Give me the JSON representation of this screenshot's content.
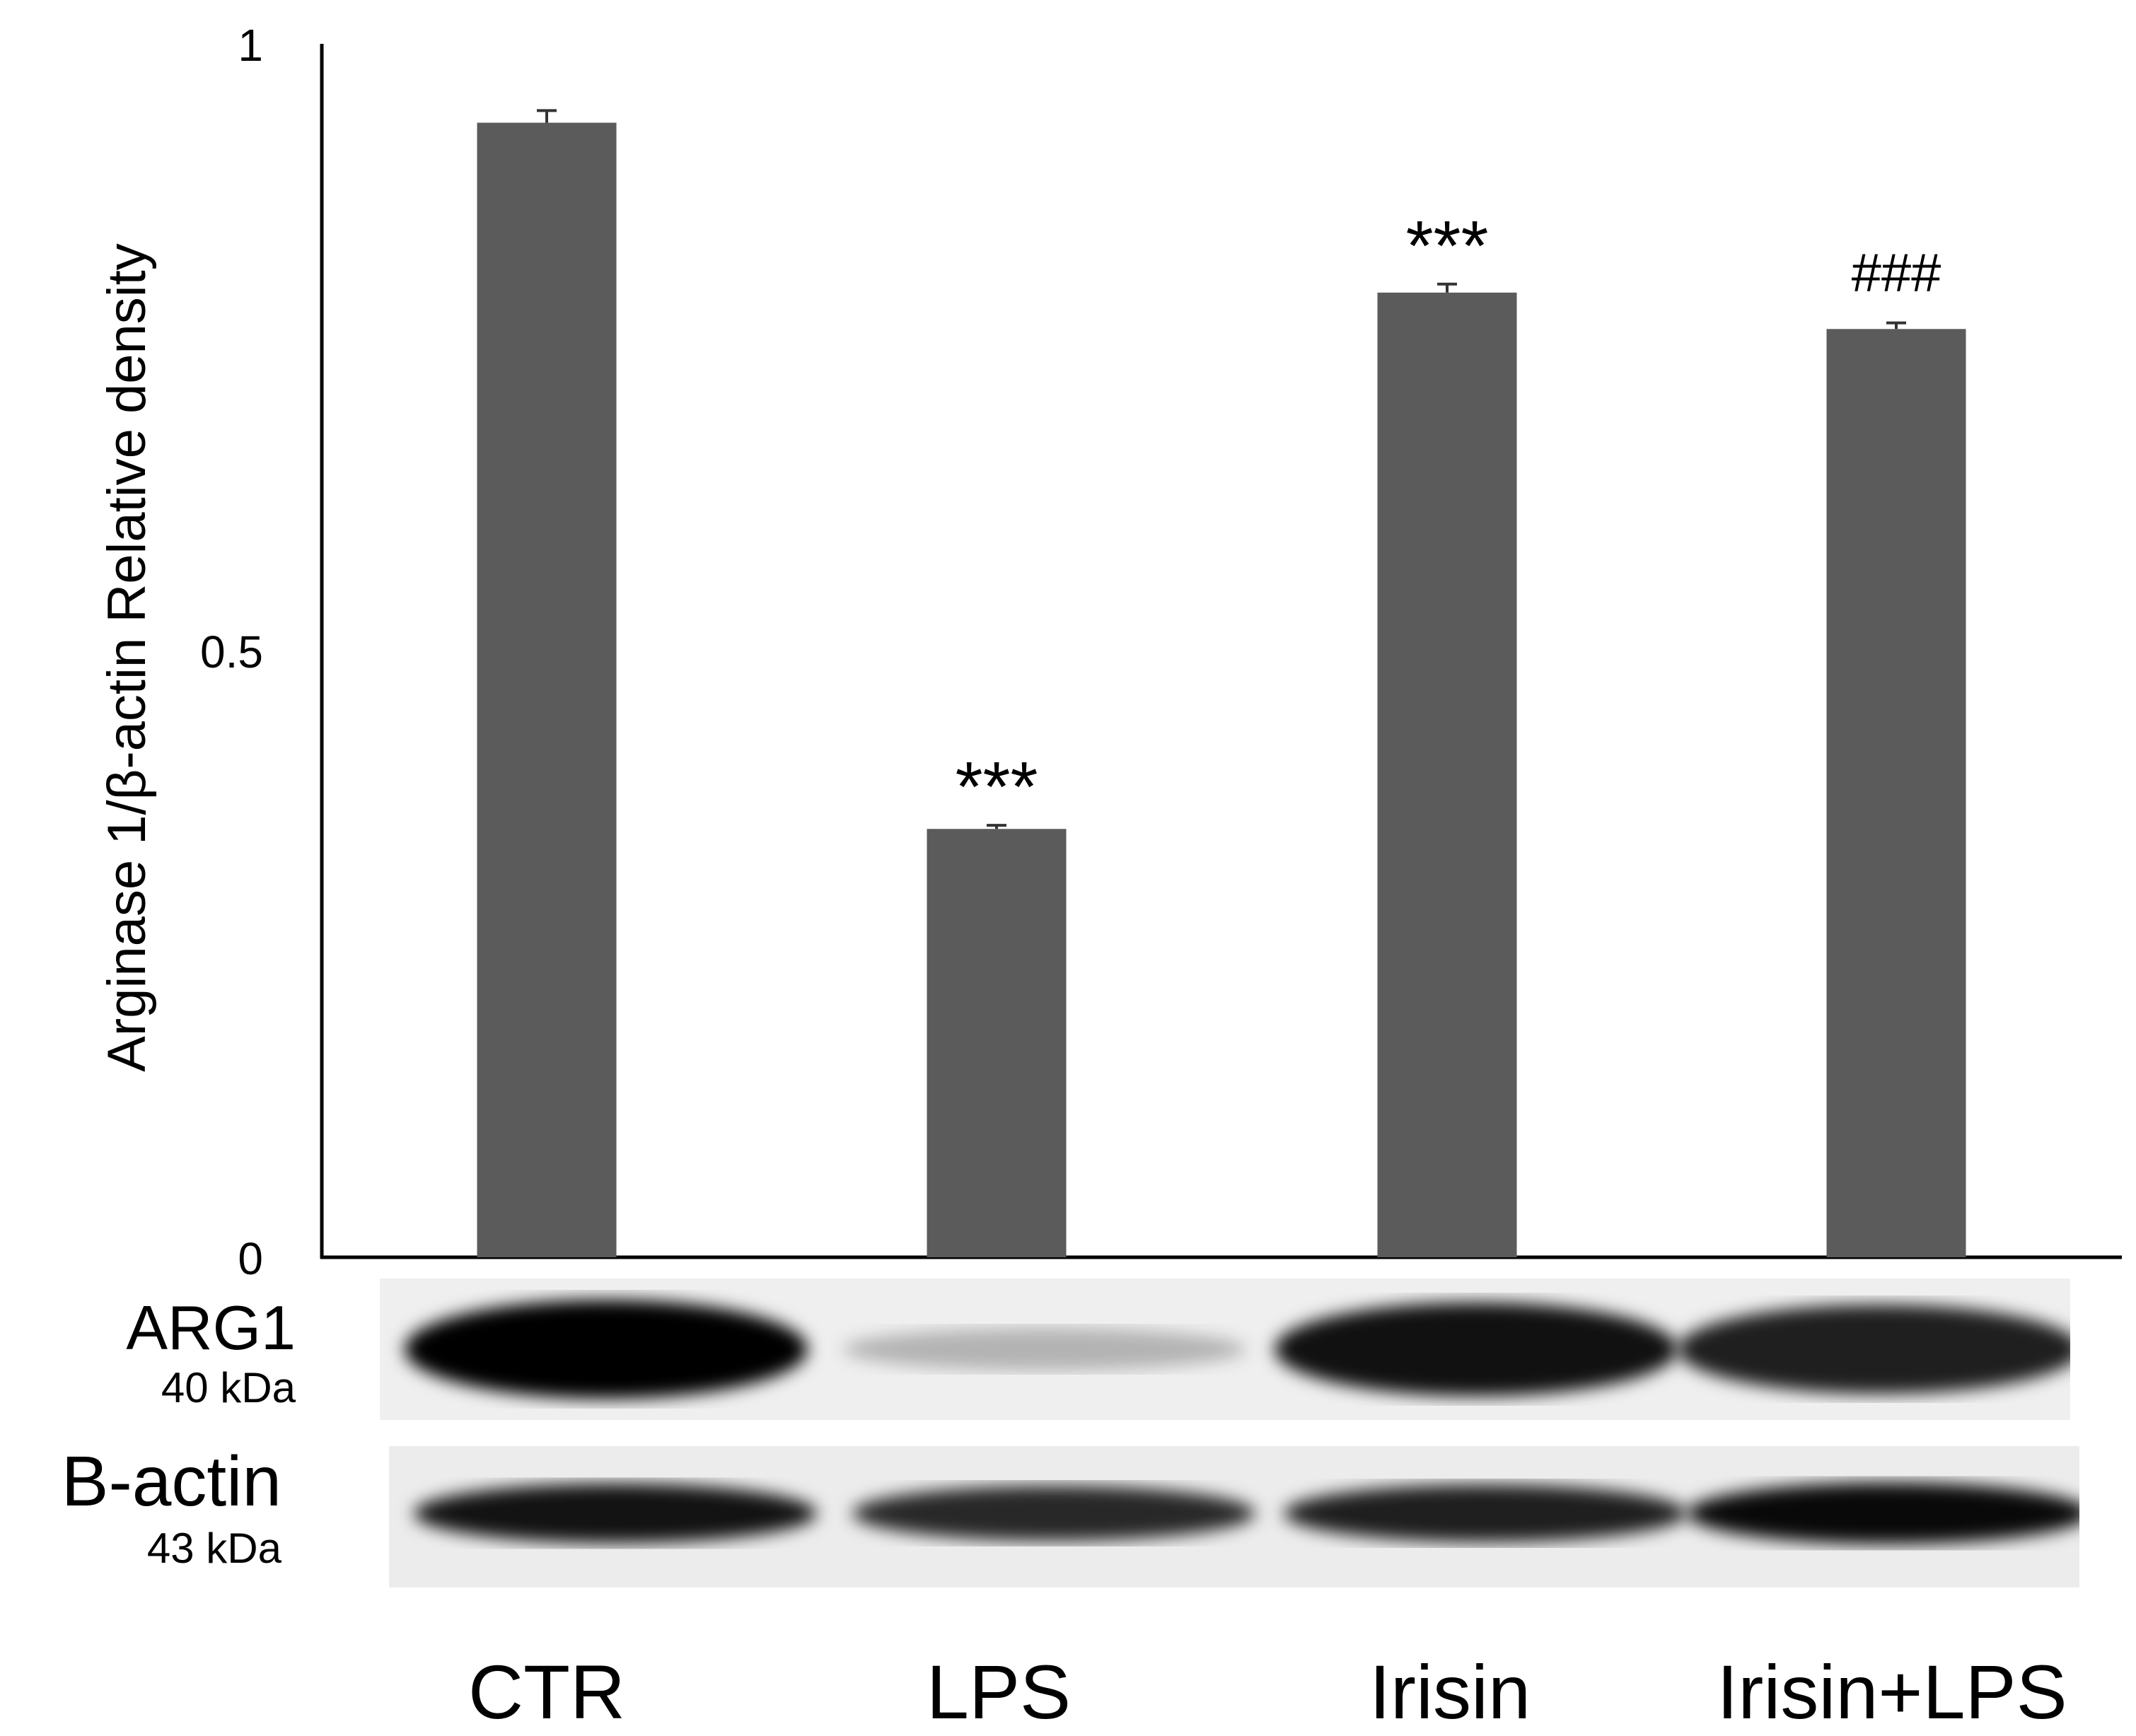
{
  "chart_data": {
    "type": "bar",
    "categories": [
      "CTR",
      "LPS",
      "Irisin",
      "Irisin+LPS"
    ],
    "values": [
      0.935,
      0.353,
      0.795,
      0.765
    ],
    "errors": [
      0.01,
      0.003,
      0.007,
      0.005
    ],
    "annotations": [
      "",
      "***",
      "***",
      "###"
    ],
    "ylabel": "Arginase 1/β-actin Relative density",
    "xlabel": "",
    "ylim": [
      0,
      1
    ],
    "yticks": [
      "0",
      "0.5",
      "1"
    ],
    "grid": false,
    "bar_color": "#5b5b5b"
  },
  "blots": [
    {
      "name": "ARG1",
      "size": "40 kDa",
      "intensities": [
        1.0,
        0.12,
        0.92,
        0.85
      ]
    },
    {
      "name": "B-actin",
      "size": "43 kDa",
      "intensities": [
        0.9,
        0.8,
        0.85,
        0.95
      ]
    }
  ]
}
